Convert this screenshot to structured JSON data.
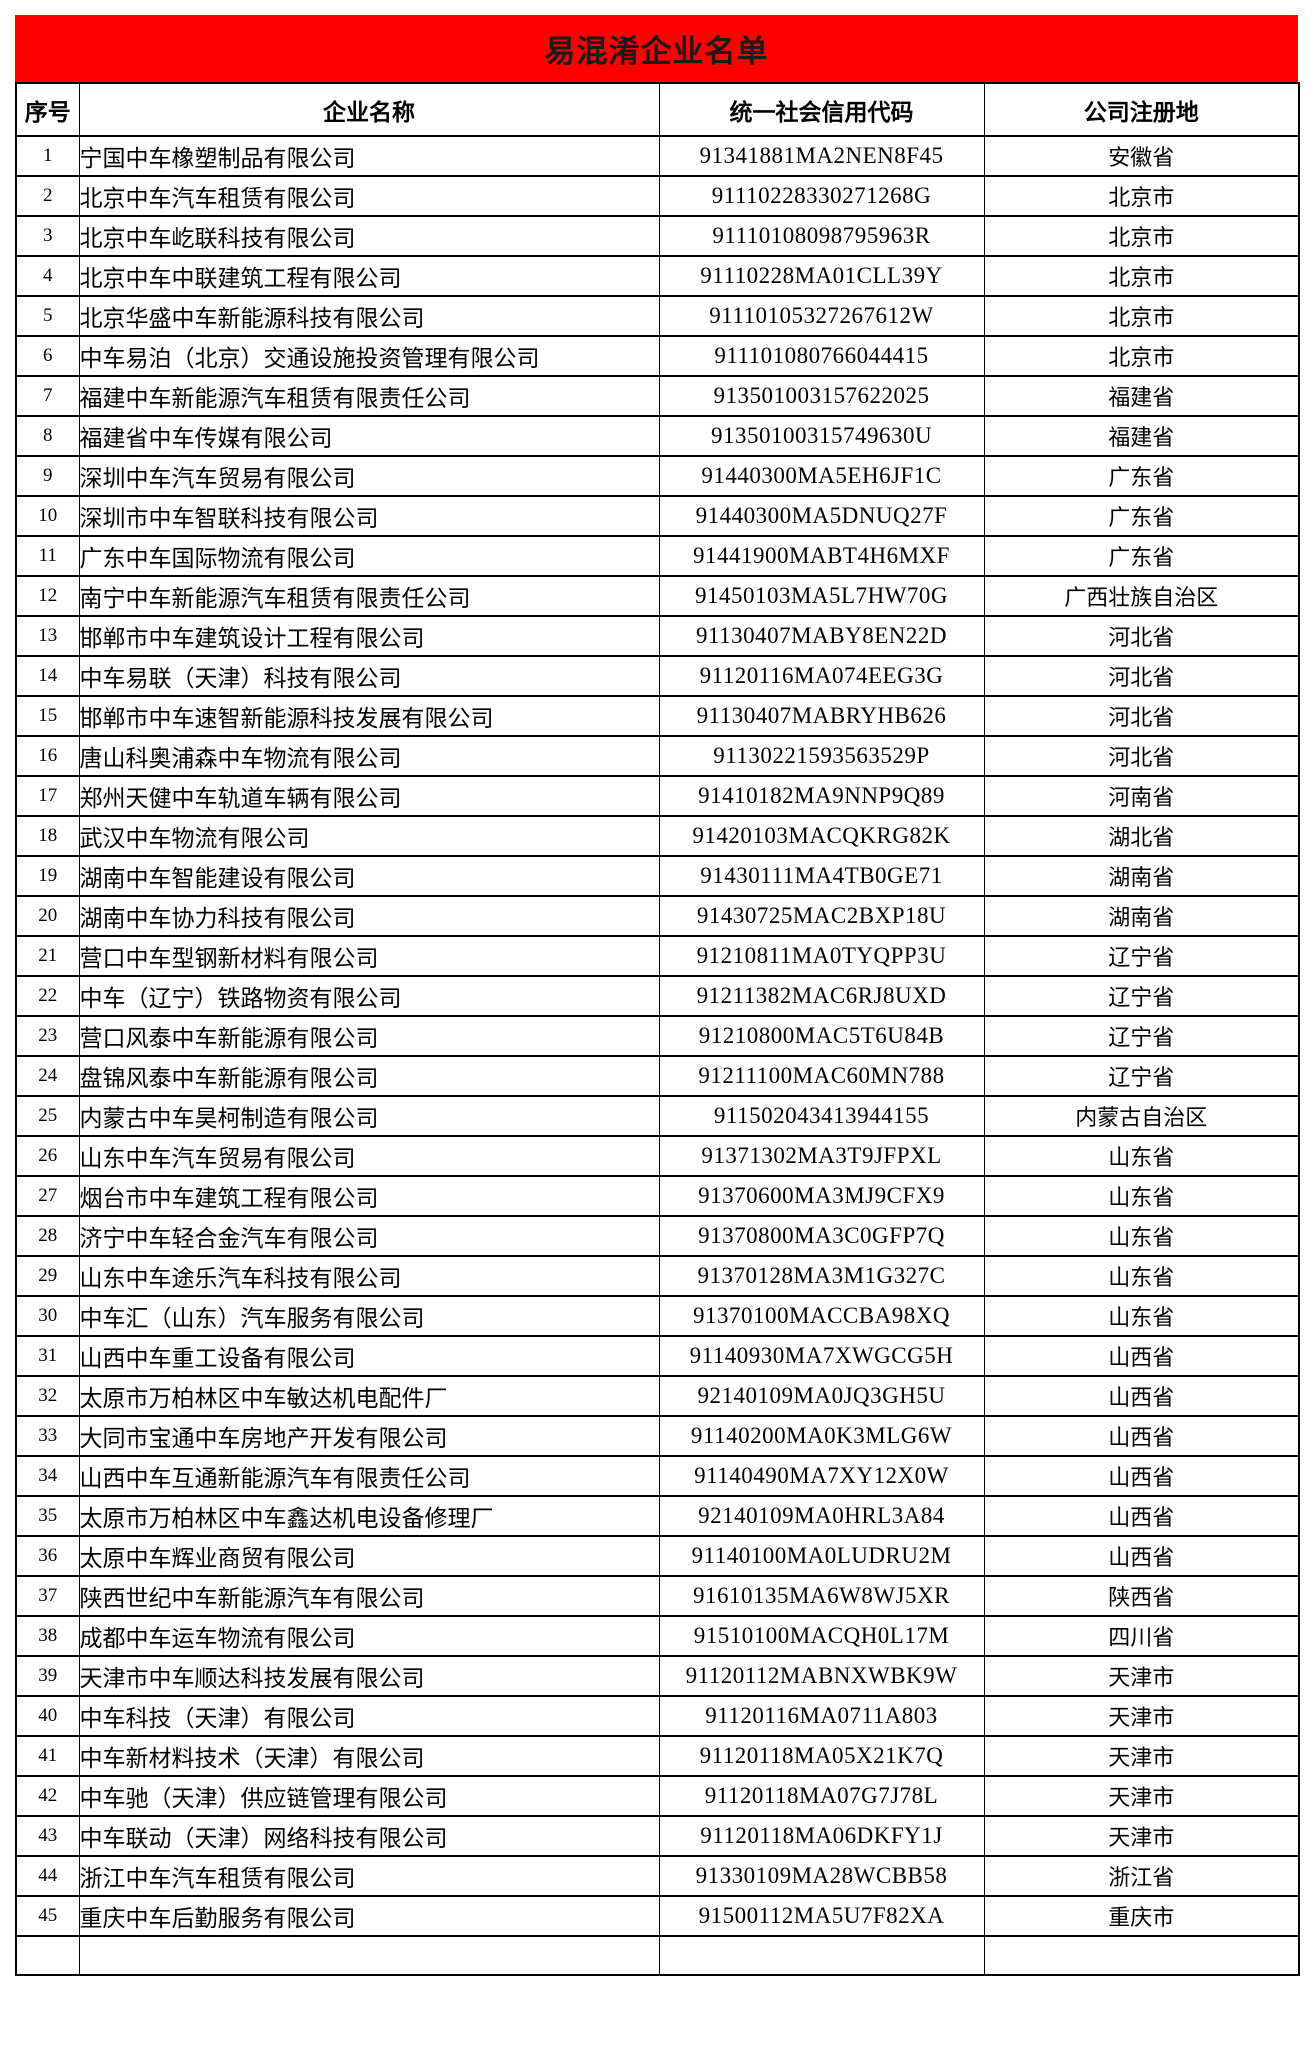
{
  "title": "易混淆企业名单",
  "columns": [
    "序号",
    "企业名称",
    "统一社会信用代码",
    "公司注册地"
  ],
  "colors": {
    "banner_background": "#ff0000",
    "banner_text": "#1a1a1a",
    "border": "#000000",
    "cell_background": "#ffffff"
  },
  "rows": [
    {
      "no": "1",
      "name": "宁国中车橡塑制品有限公司",
      "code": "91341881MA2NEN8F45",
      "location": "安徽省"
    },
    {
      "no": "2",
      "name": "北京中车汽车租赁有限公司",
      "code": "91110228330271268G",
      "location": "北京市"
    },
    {
      "no": "3",
      "name": "北京中车屹联科技有限公司",
      "code": "91110108098795963R",
      "location": "北京市"
    },
    {
      "no": "4",
      "name": "北京中车中联建筑工程有限公司",
      "code": "91110228MA01CLL39Y",
      "location": "北京市"
    },
    {
      "no": "5",
      "name": "北京华盛中车新能源科技有限公司",
      "code": "91110105327267612W",
      "location": "北京市"
    },
    {
      "no": "6",
      "name": "中车易泊（北京）交通设施投资管理有限公司",
      "code": "911101080766044415",
      "location": "北京市"
    },
    {
      "no": "7",
      "name": "福建中车新能源汽车租赁有限责任公司",
      "code": "913501003157622025",
      "location": "福建省"
    },
    {
      "no": "8",
      "name": "福建省中车传媒有限公司",
      "code": "91350100315749630U",
      "location": "福建省"
    },
    {
      "no": "9",
      "name": "深圳中车汽车贸易有限公司",
      "code": "91440300MA5EH6JF1C",
      "location": "广东省"
    },
    {
      "no": "10",
      "name": "深圳市中车智联科技有限公司",
      "code": "91440300MA5DNUQ27F",
      "location": "广东省"
    },
    {
      "no": "11",
      "name": "广东中车国际物流有限公司",
      "code": "91441900MABT4H6MXF",
      "location": "广东省"
    },
    {
      "no": "12",
      "name": "南宁中车新能源汽车租赁有限责任公司",
      "code": "91450103MA5L7HW70G",
      "location": "广西壮族自治区"
    },
    {
      "no": "13",
      "name": "邯郸市中车建筑设计工程有限公司",
      "code": "91130407MABY8EN22D",
      "location": "河北省"
    },
    {
      "no": "14",
      "name": "中车易联（天津）科技有限公司",
      "code": "91120116MA074EEG3G",
      "location": "河北省"
    },
    {
      "no": "15",
      "name": "邯郸市中车速智新能源科技发展有限公司",
      "code": "91130407MABRYHB626",
      "location": "河北省"
    },
    {
      "no": "16",
      "name": "唐山科奥浦森中车物流有限公司",
      "code": "91130221593563529P",
      "location": "河北省"
    },
    {
      "no": "17",
      "name": "郑州天健中车轨道车辆有限公司",
      "code": "91410182MA9NNP9Q89",
      "location": "河南省"
    },
    {
      "no": "18",
      "name": "武汉中车物流有限公司",
      "code": "91420103MACQKRG82K",
      "location": "湖北省"
    },
    {
      "no": "19",
      "name": "湖南中车智能建设有限公司",
      "code": "91430111MA4TB0GE71",
      "location": "湖南省"
    },
    {
      "no": "20",
      "name": "湖南中车协力科技有限公司",
      "code": "91430725MAC2BXP18U",
      "location": "湖南省"
    },
    {
      "no": "21",
      "name": "营口中车型钢新材料有限公司",
      "code": "91210811MA0TYQPP3U",
      "location": "辽宁省"
    },
    {
      "no": "22",
      "name": "中车（辽宁）铁路物资有限公司",
      "code": "91211382MAC6RJ8UXD",
      "location": "辽宁省"
    },
    {
      "no": "23",
      "name": "营口风泰中车新能源有限公司",
      "code": "91210800MAC5T6U84B",
      "location": "辽宁省"
    },
    {
      "no": "24",
      "name": "盘锦风泰中车新能源有限公司",
      "code": "91211100MAC60MN788",
      "location": "辽宁省"
    },
    {
      "no": "25",
      "name": "内蒙古中车昊柯制造有限公司",
      "code": "911502043413944155",
      "location": "内蒙古自治区"
    },
    {
      "no": "26",
      "name": "山东中车汽车贸易有限公司",
      "code": "91371302MA3T9JFPXL",
      "location": "山东省"
    },
    {
      "no": "27",
      "name": "烟台市中车建筑工程有限公司",
      "code": "91370600MA3MJ9CFX9",
      "location": "山东省"
    },
    {
      "no": "28",
      "name": "济宁中车轻合金汽车有限公司",
      "code": "91370800MA3C0GFP7Q",
      "location": "山东省"
    },
    {
      "no": "29",
      "name": "山东中车途乐汽车科技有限公司",
      "code": "91370128MA3M1G327C",
      "location": "山东省"
    },
    {
      "no": "30",
      "name": "中车汇（山东）汽车服务有限公司",
      "code": "91370100MACCBA98XQ",
      "location": "山东省"
    },
    {
      "no": "31",
      "name": "山西中车重工设备有限公司",
      "code": "91140930MA7XWGCG5H",
      "location": "山西省"
    },
    {
      "no": "32",
      "name": "太原市万柏林区中车敏达机电配件厂",
      "code": "92140109MA0JQ3GH5U",
      "location": "山西省"
    },
    {
      "no": "33",
      "name": "大同市宝通中车房地产开发有限公司",
      "code": "91140200MA0K3MLG6W",
      "location": "山西省"
    },
    {
      "no": "34",
      "name": "山西中车互通新能源汽车有限责任公司",
      "code": "91140490MA7XY12X0W",
      "location": "山西省"
    },
    {
      "no": "35",
      "name": "太原市万柏林区中车鑫达机电设备修理厂",
      "code": "92140109MA0HRL3A84",
      "location": "山西省"
    },
    {
      "no": "36",
      "name": "太原中车辉业商贸有限公司",
      "code": "91140100MA0LUDRU2M",
      "location": "山西省"
    },
    {
      "no": "37",
      "name": "陕西世纪中车新能源汽车有限公司",
      "code": "91610135MA6W8WJ5XR",
      "location": "陕西省"
    },
    {
      "no": "38",
      "name": "成都中车运车物流有限公司",
      "code": "91510100MACQH0L17M",
      "location": "四川省"
    },
    {
      "no": "39",
      "name": "天津市中车顺达科技发展有限公司",
      "code": "91120112MABNXWBK9W",
      "location": "天津市"
    },
    {
      "no": "40",
      "name": "中车科技（天津）有限公司",
      "code": "91120116MA0711A803",
      "location": "天津市"
    },
    {
      "no": "41",
      "name": "中车新材料技术（天津）有限公司",
      "code": "91120118MA05X21K7Q",
      "location": "天津市"
    },
    {
      "no": "42",
      "name": "中车驰（天津）供应链管理有限公司",
      "code": "91120118MA07G7J78L",
      "location": "天津市"
    },
    {
      "no": "43",
      "name": "中车联动（天津）网络科技有限公司",
      "code": "91120118MA06DKFY1J",
      "location": "天津市"
    },
    {
      "no": "44",
      "name": "浙江中车汽车租赁有限公司",
      "code": "91330109MA28WCBB58",
      "location": "浙江省"
    },
    {
      "no": "45",
      "name": "重庆中车后勤服务有限公司",
      "code": "91500112MA5U7F82XA",
      "location": "重庆市"
    }
  ]
}
